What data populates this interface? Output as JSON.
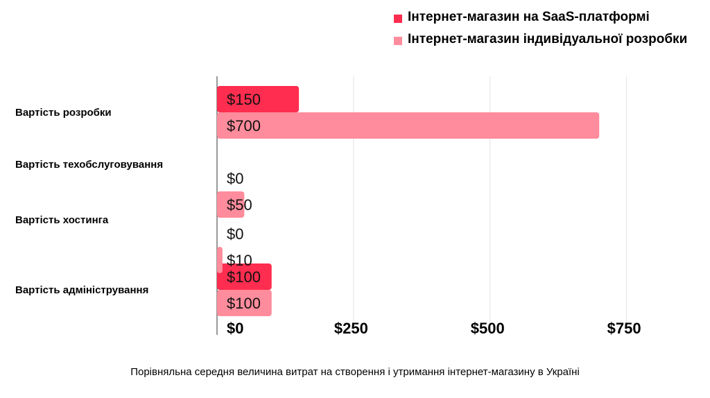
{
  "chart_data": {
    "type": "bar",
    "orientation": "horizontal",
    "categories": [
      "Вартість розробки",
      "Вартість техобслуговування",
      "Вартість хостинга",
      "Вартість адміністрування"
    ],
    "series": [
      {
        "name": "Інтернет-магазин на SaaS-платформі",
        "values": [
          150,
          0,
          0,
          100
        ],
        "labels": [
          "$150",
          "$0",
          "$0",
          "$100"
        ],
        "color": "#ff2d4f"
      },
      {
        "name": "Інтернет-магазин індивідуальної розробки",
        "values": [
          700,
          50,
          10,
          100
        ],
        "labels": [
          "$700",
          "$50",
          "$10",
          "$100"
        ],
        "color": "#ff8c9c"
      }
    ],
    "xticks": [
      0,
      250,
      500,
      750
    ],
    "xtick_labels": [
      "$0",
      "$250",
      "$500",
      "$750"
    ],
    "xlim": [
      0,
      900
    ],
    "grid": true,
    "legend": "top-right"
  },
  "caption": "Порівняльна середня величина витрат на створення і утримання інтернет-магазину в Україні"
}
